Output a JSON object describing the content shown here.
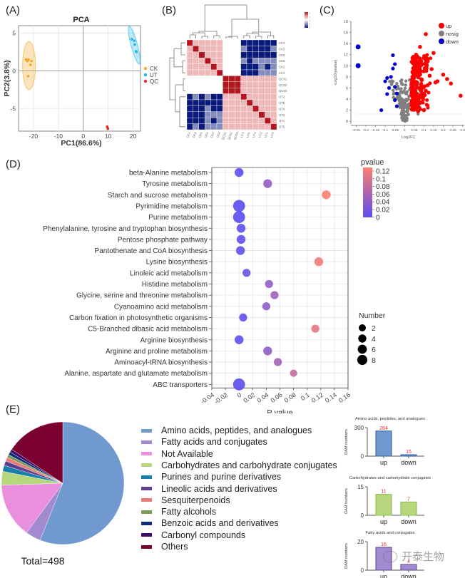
{
  "panels": {
    "A": "(A)",
    "B": "(B)",
    "C": "(C)",
    "D": "(D)",
    "E": "(E)"
  },
  "watermark": {
    "icon": "wechat-icon",
    "text": "开泰生物"
  },
  "chart_data": [
    {
      "id": "pca",
      "type": "scatter",
      "title": "PCA",
      "xlabel": "PC1(86.6%)",
      "ylabel": "PC2(3.8%)",
      "xlim": [
        -26,
        23
      ],
      "ylim": [
        -8,
        6
      ],
      "xticks": [
        -20,
        -10,
        0,
        10,
        20
      ],
      "yticks": [
        -5,
        0,
        5
      ],
      "grid": true,
      "legend_position": "right",
      "series": [
        {
          "name": "CK",
          "color": "#f5a623",
          "points": [
            [
              -23,
              1.5
            ],
            [
              -22.5,
              1.3
            ],
            [
              -22,
              1.5
            ],
            [
              -20.8,
              1.3
            ],
            [
              -21.2,
              0.8
            ],
            [
              -22.2,
              -0.7
            ]
          ],
          "ellipse": {
            "center": [
              -21.8,
              0.7
            ],
            "rx": 2.6,
            "ry": 3.2,
            "angle": 0
          }
        },
        {
          "name": "UT",
          "color": "#1fb5e8",
          "points": [
            [
              19.5,
              4.2
            ],
            [
              20.5,
              4.0
            ],
            [
              20.7,
              3.5
            ],
            [
              21.2,
              2.6
            ],
            [
              21.4,
              2.5
            ]
          ],
          "ellipse": {
            "center": [
              20.5,
              3.4
            ],
            "rx": 1.3,
            "ry": 2.6,
            "angle": -15
          }
        },
        {
          "name": "QC",
          "color": "#e8302a",
          "points": [
            [
              9.6,
              -7.4
            ],
            [
              9.8,
              -7.55
            ],
            [
              9.9,
              -7.7
            ]
          ]
        }
      ]
    },
    {
      "id": "correlation-heatmap",
      "type": "heatmap",
      "row_labels": [
        "CK1",
        "CK3",
        "CK6",
        "CK5",
        "CK2",
        "CK4",
        "QC01",
        "QC02",
        "QC03",
        "UT3",
        "UT6",
        "UT4",
        "UT2",
        "UT1",
        "UT5"
      ],
      "col_labels": [
        "CK1",
        "CK3",
        "CK6",
        "CK5",
        "CK2",
        "CK4",
        "QC01",
        "QC02",
        "QC03",
        "UT3",
        "UT6",
        "UT4",
        "UT2",
        "UT1",
        "UT5"
      ],
      "colorbar": {
        "ticks": [
          "1",
          "0.99",
          "0.98",
          "0.97",
          "0.96"
        ],
        "range": [
          0.96,
          1
        ],
        "colors": [
          "#0a1a7a",
          "#ffffff",
          "#b2161e"
        ]
      },
      "values": [
        [
          1,
          0.99,
          0.99,
          0.99,
          0.99,
          0.99,
          0.98,
          0.98,
          0.98,
          0.96,
          0.96,
          0.96,
          0.96,
          0.96,
          0.96
        ],
        [
          0.99,
          1,
          0.99,
          0.99,
          0.99,
          0.99,
          0.98,
          0.98,
          0.98,
          0.97,
          0.96,
          0.96,
          0.96,
          0.96,
          0.97
        ],
        [
          0.99,
          0.99,
          1,
          0.99,
          0.99,
          0.99,
          0.98,
          0.98,
          0.98,
          0.96,
          0.96,
          0.96,
          0.96,
          0.96,
          0.96
        ],
        [
          0.99,
          0.99,
          0.99,
          1,
          0.99,
          0.99,
          0.98,
          0.98,
          0.98,
          0.97,
          0.96,
          0.97,
          0.97,
          0.97,
          0.97
        ],
        [
          0.99,
          0.99,
          0.99,
          0.99,
          1,
          0.99,
          0.98,
          0.98,
          0.98,
          0.96,
          0.96,
          0.96,
          0.97,
          0.96,
          0.97
        ],
        [
          0.99,
          0.99,
          0.99,
          0.99,
          0.99,
          1,
          0.98,
          0.98,
          0.98,
          0.96,
          0.96,
          0.96,
          0.97,
          0.97,
          0.97
        ],
        [
          0.98,
          0.98,
          0.98,
          0.98,
          0.98,
          0.98,
          1,
          1,
          1,
          0.99,
          0.99,
          0.99,
          0.99,
          0.99,
          0.99
        ],
        [
          0.98,
          0.98,
          0.98,
          0.98,
          0.98,
          0.98,
          1,
          1,
          1,
          0.99,
          0.99,
          0.99,
          0.99,
          0.99,
          0.99
        ],
        [
          0.98,
          0.98,
          0.98,
          0.98,
          0.98,
          0.98,
          1,
          1,
          1,
          0.99,
          0.99,
          0.99,
          0.99,
          0.99,
          0.99
        ],
        [
          0.96,
          0.97,
          0.96,
          0.97,
          0.96,
          0.96,
          0.99,
          0.99,
          0.99,
          1,
          0.99,
          0.99,
          0.99,
          0.99,
          0.99
        ],
        [
          0.96,
          0.96,
          0.96,
          0.96,
          0.96,
          0.96,
          0.99,
          0.99,
          0.99,
          0.99,
          1,
          0.99,
          0.99,
          0.99,
          0.99
        ],
        [
          0.96,
          0.96,
          0.96,
          0.97,
          0.96,
          0.96,
          0.99,
          0.99,
          0.99,
          0.99,
          0.99,
          1,
          0.99,
          0.99,
          0.99
        ],
        [
          0.96,
          0.96,
          0.96,
          0.97,
          0.97,
          0.97,
          0.99,
          0.99,
          0.99,
          0.99,
          0.99,
          0.99,
          1,
          0.99,
          0.99
        ],
        [
          0.96,
          0.96,
          0.96,
          0.97,
          0.96,
          0.97,
          0.99,
          0.99,
          0.99,
          0.99,
          0.99,
          0.99,
          0.99,
          1,
          0.99
        ],
        [
          0.96,
          0.97,
          0.96,
          0.97,
          0.97,
          0.97,
          0.99,
          0.99,
          0.99,
          0.99,
          0.99,
          0.99,
          0.99,
          0.99,
          1
        ]
      ]
    },
    {
      "id": "volcano",
      "type": "scatter",
      "xlabel": "Log2FC",
      "ylabel": "-Log10(pvalue)",
      "xlim": [
        -0.27,
        0.32
      ],
      "ylim": [
        -0.5,
        18
      ],
      "xticks": [
        "-0.25",
        "-0.2",
        "-0.15",
        "-0.1",
        "-0.05",
        "0",
        "0.05",
        "0.1",
        "0.15",
        "0.2",
        "0.25",
        "0.3"
      ],
      "yticks": [
        "0",
        "2",
        "4",
        "6",
        "8",
        "10",
        "12",
        "14",
        "16",
        "18"
      ],
      "threshold_y": 1.3,
      "legend_position": "top-right",
      "series": [
        {
          "name": "up",
          "color": "#ff0000",
          "count": 264,
          "points": [
            [
              0.11,
              15.7
            ],
            [
              0.08,
              13.4
            ],
            [
              0.15,
              12.3
            ],
            [
              0.2,
              8.4
            ],
            [
              0.22,
              7.6
            ],
            [
              0.24,
              6.8
            ],
            [
              0.29,
              4.6
            ],
            [
              0.17,
              7.2
            ],
            [
              0.16,
              7.0
            ],
            [
              0.14,
              9.4
            ],
            [
              0.12,
              10.8
            ],
            [
              0.1,
              9.0
            ],
            [
              0.09,
              6.0
            ],
            [
              0.07,
              3.0
            ],
            [
              0.1,
              2.0
            ],
            [
              0.07,
              1.8
            ],
            [
              0.06,
              10.0
            ],
            [
              0.05,
              8.0
            ],
            [
              0.04,
              6.0
            ],
            [
              0.05,
              4.0
            ],
            [
              0.08,
              11.0
            ],
            [
              0.06,
              12.0
            ],
            [
              0.09,
              7.5
            ],
            [
              0.11,
              5.5
            ],
            [
              0.13,
              8.2
            ],
            [
              0.045,
              9.5
            ],
            [
              0.07,
              9.0
            ],
            [
              0.12,
              6.5
            ],
            [
              0.085,
              4.5
            ],
            [
              0.055,
              5.2
            ]
          ]
        },
        {
          "name": "nosig",
          "color": "#808080",
          "points": [
            [
              0.0,
              0.5
            ],
            [
              -0.01,
              1.5
            ],
            [
              0.01,
              2.5
            ],
            [
              -0.02,
              3.5
            ],
            [
              0.02,
              4.0
            ],
            [
              -0.03,
              5.0
            ],
            [
              0.03,
              6.0
            ],
            [
              -0.04,
              6.8
            ],
            [
              0.04,
              7.3
            ],
            [
              0.0,
              1.0
            ],
            [
              0.01,
              0.3
            ],
            [
              -0.005,
              2.0
            ],
            [
              0.02,
              1.2
            ],
            [
              -0.025,
              4.5
            ],
            [
              0.07,
              1.3
            ]
          ]
        },
        {
          "name": "down",
          "color": "#0000cc",
          "count": 15,
          "points": [
            [
              -0.24,
              13.4
            ],
            [
              -0.24,
              10.0
            ],
            [
              -0.06,
              11.9
            ],
            [
              -0.05,
              10.3
            ],
            [
              -0.12,
              2.0
            ],
            [
              -0.1,
              7.2
            ],
            [
              -0.09,
              7.8
            ],
            [
              -0.08,
              6.0
            ],
            [
              -0.07,
              8.0
            ],
            [
              -0.06,
              9.5
            ],
            [
              -0.05,
              6.2
            ],
            [
              -0.04,
              5.0
            ],
            [
              -0.05,
              3.8
            ],
            [
              -0.04,
              2.7
            ],
            [
              -0.09,
              4.9
            ]
          ]
        }
      ]
    },
    {
      "id": "kegg-enrichment",
      "type": "scatter",
      "xlabel": "P value",
      "xlim": [
        -0.04,
        0.16
      ],
      "xticks": [
        "-0.04",
        "-0.02",
        "0",
        "0.02",
        "0.04",
        "0.06",
        "0.08",
        "0.1",
        "0.12",
        "0.14",
        "0.16"
      ],
      "grid": true,
      "color_legend": {
        "title": "pvalue",
        "ticks": [
          "0.12",
          "0.1",
          "0.08",
          "0.06",
          "0.04",
          "0.02",
          "0"
        ],
        "low_color": "#5b4ef0",
        "high_color": "#ff7f6e"
      },
      "size_legend": {
        "title": "Number",
        "values": [
          "2",
          "4",
          "6",
          "8"
        ]
      },
      "categories": [
        "beta-Alanine metabolism",
        "Tyrosine metabolism",
        "Starch and sucrose metabolism",
        "Pyrimidine metabolism",
        "Purine metabolism",
        "Phenylalanine, tyrosine and tryptophan biosynthesis",
        "Pentose phosphate pathway",
        "Pantothenate and CoA biosynthesis",
        "Lysine biosynthesis",
        "Linoleic acid metabolism",
        "Histidine metabolism",
        "Glycine, serine and threonine metabolism",
        "Cyanoamino acid metabolism",
        "Carbon fixation in photosynthetic organisms",
        "C5-Branched dibasic acid metabolism",
        "Arginine biosynthesis",
        "Arginine and proline metabolism",
        "Aminoacyl-tRNA biosynthesis",
        "Alanine, aspartate and glutamate metabolism",
        "ABC transporters"
      ],
      "pvalues": [
        0.0,
        0.042,
        0.128,
        0.0,
        0.0,
        0.003,
        0.003,
        0.002,
        0.117,
        0.011,
        0.044,
        0.052,
        0.04,
        0.006,
        0.112,
        0.0,
        0.042,
        0.057,
        0.08,
        0.0
      ],
      "numbers": [
        4,
        4,
        4,
        8,
        8,
        4,
        4,
        4,
        4,
        3,
        3,
        3,
        3,
        3,
        3,
        4,
        4,
        3,
        2,
        8
      ]
    },
    {
      "id": "compound-classes",
      "type": "pie",
      "total_label": "Total=498",
      "legend_position": "right",
      "categories": [
        "Amino acids, peptides, and analogues",
        "Fatty acids and conjugates",
        "Not Available",
        "Carbohydrates and carbohydrate conjugates",
        "Purines and purine derivatives",
        "Lineolic acids and derivatives",
        "Sesquiterpenoids",
        "Fatty alcohols",
        "Benzoic acids and derivatives",
        "Carbonyl compounds",
        "Others"
      ],
      "values": [
        279,
        20,
        72,
        18,
        8,
        6,
        5,
        4,
        4,
        4,
        78
      ],
      "colors": [
        "#7099d0",
        "#a18ad0",
        "#ea8fde",
        "#b6d77c",
        "#1a7fa8",
        "#5d3f8e",
        "#e97a78",
        "#7d9c5a",
        "#0f2e78",
        "#3c0a66",
        "#7a0030"
      ]
    },
    {
      "id": "dam-amino",
      "type": "bar",
      "title": "Amino acids, peptides, and analogues",
      "ylabel": "DAM numbers",
      "categories": [
        "up",
        "down"
      ],
      "values": [
        264,
        15
      ],
      "ylim": [
        0,
        300
      ],
      "yticks": [
        "0",
        "300"
      ],
      "color": "#7099d0",
      "border": "#2b5aa0"
    },
    {
      "id": "dam-carbohydrates",
      "type": "bar",
      "title": "Carbohydrates and carbohydrate conjugates",
      "ylabel": "DAM numbers",
      "categories": [
        "up",
        "down"
      ],
      "values": [
        11,
        7
      ],
      "ylim": [
        0,
        15
      ],
      "yticks": [
        "0",
        "15"
      ],
      "color": "#b6d77c",
      "border": "#8ab84a"
    },
    {
      "id": "dam-fatty",
      "type": "bar",
      "title": "Fatty acids and conjugates",
      "ylabel": "DAM numbers",
      "categories": [
        "up",
        "down"
      ],
      "values": [
        16,
        4
      ],
      "ylim": [
        0,
        20
      ],
      "yticks": [
        "0",
        "20"
      ],
      "color": "#a18ad0",
      "border": "#5d3f8e"
    }
  ]
}
